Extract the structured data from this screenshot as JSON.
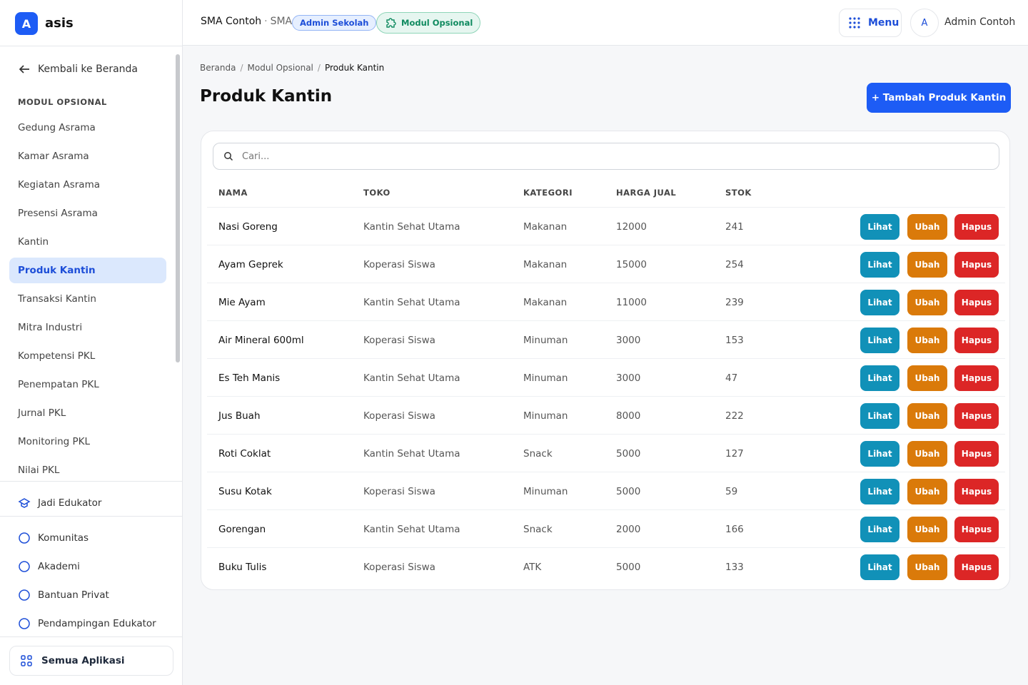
{
  "sidebar": {
    "logo_letter": "A",
    "brand": "asis",
    "back": "Kembali ke Beranda",
    "section_title": "MODUL OPSIONAL",
    "items": [
      "Gedung Asrama",
      "Kamar Asrama",
      "Kegiatan Asrama",
      "Presensi Asrama",
      "Kantin",
      "Produk Kantin",
      "Transaksi Kantin",
      "Mitra Industri",
      "Kompetensi PKL",
      "Penempatan PKL",
      "Jurnal PKL",
      "Monitoring PKL",
      "Nilai PKL"
    ],
    "active_item": 5,
    "educator": "Jadi Edukator",
    "links": [
      "Komunitas",
      "Akademi",
      "Bantuan Privat",
      "Pendampingan Edukator"
    ],
    "all_apps": "Semua Aplikasi"
  },
  "header": {
    "school": "SMA Contoh",
    "level": "SMA",
    "role_badge": "Admin Sekolah",
    "module_badge": "Modul Opsional",
    "menu": "Menu",
    "avatar": "A",
    "user": "Admin Contoh"
  },
  "breadcrumb": [
    "Beranda",
    "Modul Opsional",
    "Produk Kantin"
  ],
  "title": "Produk Kantin",
  "add_button": "+ Tambah Produk Kantin",
  "search_placeholder": "Cari...",
  "table": {
    "columns": [
      "NAMA",
      "TOKO",
      "KATEGORI",
      "HARGA JUAL",
      "STOK"
    ],
    "rows": [
      [
        "Nasi Goreng",
        "Kantin Sehat Utama",
        "Makanan",
        12000,
        241
      ],
      [
        "Ayam Geprek",
        "Koperasi Siswa",
        "Makanan",
        15000,
        254
      ],
      [
        "Mie Ayam",
        "Kantin Sehat Utama",
        "Makanan",
        11000,
        239
      ],
      [
        "Air Mineral 600ml",
        "Koperasi Siswa",
        "Minuman",
        3000,
        153
      ],
      [
        "Es Teh Manis",
        "Kantin Sehat Utama",
        "Minuman",
        3000,
        47
      ],
      [
        "Jus Buah",
        "Koperasi Siswa",
        "Minuman",
        8000,
        222
      ],
      [
        "Roti Coklat",
        "Kantin Sehat Utama",
        "Snack",
        5000,
        127
      ],
      [
        "Susu Kotak",
        "Koperasi Siswa",
        "Minuman",
        5000,
        59
      ],
      [
        "Gorengan",
        "Kantin Sehat Utama",
        "Snack",
        2000,
        166
      ],
      [
        "Buku Tulis",
        "Koperasi Siswa",
        "ATK",
        5000,
        133
      ]
    ],
    "actions": [
      "Lihat",
      "Ubah",
      "Hapus"
    ]
  }
}
